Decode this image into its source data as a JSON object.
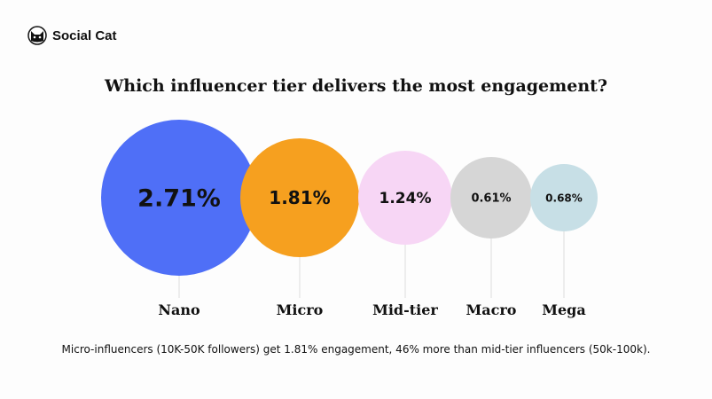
{
  "brand": {
    "name": "Social Cat",
    "icon": "cat-face-icon"
  },
  "chart_data": {
    "type": "bubble",
    "title": "Which influencer tier delivers the most engagement?",
    "categories": [
      "Nano",
      "Micro",
      "Mid-tier",
      "Macro",
      "Mega"
    ],
    "values": [
      2.71,
      1.81,
      1.24,
      0.61,
      0.68
    ],
    "value_labels": [
      "2.71%",
      "1.81%",
      "1.24%",
      "0.61%",
      "0.68%"
    ],
    "unit": "%",
    "colors": [
      "#4f6ff7",
      "#f6a01f",
      "#f7d6f5",
      "#d6d6d6",
      "#c7dfe6"
    ]
  },
  "caption": "Micro-influencers (10K-50K followers) get 1.81% engagement, 46% more than mid-tier influencers (50k-100k)."
}
